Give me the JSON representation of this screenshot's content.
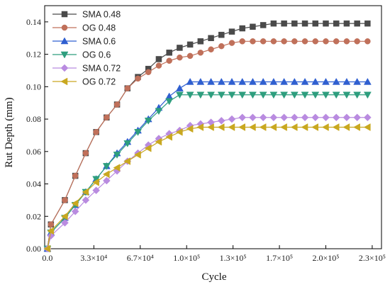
{
  "chart_data": {
    "type": "line",
    "xlabel": "Cycle",
    "ylabel": "Rut Depth (mm)",
    "xlim": [
      -2000,
      240000
    ],
    "ylim": [
      0,
      0.15
    ],
    "grid": false,
    "legend_position": "top-left",
    "x_ticks": [
      {
        "value": 0,
        "label": "0.0"
      },
      {
        "value": 33333,
        "label": "3.3×10⁴"
      },
      {
        "value": 66667,
        "label": "6.7×10⁴"
      },
      {
        "value": 100000,
        "label": "1.0×10⁵"
      },
      {
        "value": 133333,
        "label": "1.3×10⁵"
      },
      {
        "value": 166667,
        "label": "1.7×10⁵"
      },
      {
        "value": 200000,
        "label": "2.0×10⁵"
      },
      {
        "value": 233333,
        "label": "2.3×10⁵"
      }
    ],
    "y_ticks": [
      {
        "value": 0,
        "label": "0.00"
      },
      {
        "value": 0.02,
        "label": "0.02"
      },
      {
        "value": 0.04,
        "label": "0.04"
      },
      {
        "value": 0.06,
        "label": "0.06"
      },
      {
        "value": 0.08,
        "label": "0.08"
      },
      {
        "value": 0.1,
        "label": "0.10"
      },
      {
        "value": 0.12,
        "label": "0.12"
      },
      {
        "value": 0.14,
        "label": "0.14"
      }
    ],
    "x": [
      0,
      2500,
      12500,
      20000,
      27500,
      35000,
      42500,
      50000,
      57500,
      65000,
      72500,
      80000,
      87500,
      95000,
      102500,
      110000,
      117500,
      125000,
      132500,
      140000,
      147500,
      155000,
      162500,
      170000,
      177500,
      185000,
      192500,
      200000,
      207500,
      215000,
      222500,
      230000
    ],
    "series": [
      {
        "name": "SMA 0.48",
        "marker": "square",
        "color": "#4a4a4a",
        "values": [
          0,
          0.015,
          0.03,
          0.045,
          0.059,
          0.072,
          0.081,
          0.089,
          0.099,
          0.106,
          0.111,
          0.117,
          0.121,
          0.124,
          0.126,
          0.128,
          0.13,
          0.132,
          0.134,
          0.136,
          0.137,
          0.138,
          0.139,
          0.139,
          0.139,
          0.139,
          0.139,
          0.139,
          0.139,
          0.139,
          0.139,
          0.139
        ]
      },
      {
        "name": "OG 0.48",
        "marker": "circle",
        "color": "#c0705a",
        "values": [
          0,
          0.015,
          0.03,
          0.045,
          0.059,
          0.072,
          0.081,
          0.089,
          0.099,
          0.105,
          0.109,
          0.113,
          0.116,
          0.118,
          0.119,
          0.121,
          0.123,
          0.125,
          0.127,
          0.128,
          0.128,
          0.128,
          0.128,
          0.128,
          0.128,
          0.128,
          0.128,
          0.128,
          0.128,
          0.128,
          0.128,
          0.128
        ]
      },
      {
        "name": "SMA 0.6",
        "marker": "triangle-up",
        "color": "#2f5fd0",
        "values": [
          0,
          0.01,
          0.019,
          0.027,
          0.035,
          0.043,
          0.051,
          0.059,
          0.066,
          0.073,
          0.08,
          0.087,
          0.094,
          0.099,
          0.103,
          0.103,
          0.103,
          0.103,
          0.103,
          0.103,
          0.103,
          0.103,
          0.103,
          0.103,
          0.103,
          0.103,
          0.103,
          0.103,
          0.103,
          0.103,
          0.103,
          0.103
        ]
      },
      {
        "name": "OG 0.6",
        "marker": "triangle-down",
        "color": "#2e9e7e",
        "values": [
          0,
          0.01,
          0.019,
          0.027,
          0.035,
          0.043,
          0.051,
          0.058,
          0.065,
          0.072,
          0.079,
          0.085,
          0.091,
          0.095,
          0.095,
          0.095,
          0.095,
          0.095,
          0.095,
          0.095,
          0.095,
          0.095,
          0.095,
          0.095,
          0.095,
          0.095,
          0.095,
          0.095,
          0.095,
          0.095,
          0.095,
          0.095
        ]
      },
      {
        "name": "SMA 0.72",
        "marker": "diamond",
        "color": "#b98be0",
        "values": [
          0,
          0.008,
          0.016,
          0.023,
          0.03,
          0.036,
          0.042,
          0.048,
          0.054,
          0.059,
          0.064,
          0.068,
          0.071,
          0.073,
          0.076,
          0.077,
          0.078,
          0.079,
          0.08,
          0.081,
          0.081,
          0.081,
          0.081,
          0.081,
          0.081,
          0.081,
          0.081,
          0.081,
          0.081,
          0.081,
          0.081,
          0.081
        ]
      },
      {
        "name": "OG 0.72",
        "marker": "triangle-left",
        "color": "#c9a820",
        "values": [
          0,
          0.011,
          0.02,
          0.028,
          0.035,
          0.041,
          0.046,
          0.05,
          0.054,
          0.058,
          0.062,
          0.066,
          0.069,
          0.072,
          0.074,
          0.075,
          0.075,
          0.075,
          0.075,
          0.075,
          0.075,
          0.075,
          0.075,
          0.075,
          0.075,
          0.075,
          0.075,
          0.075,
          0.075,
          0.075,
          0.075,
          0.075
        ]
      }
    ]
  }
}
